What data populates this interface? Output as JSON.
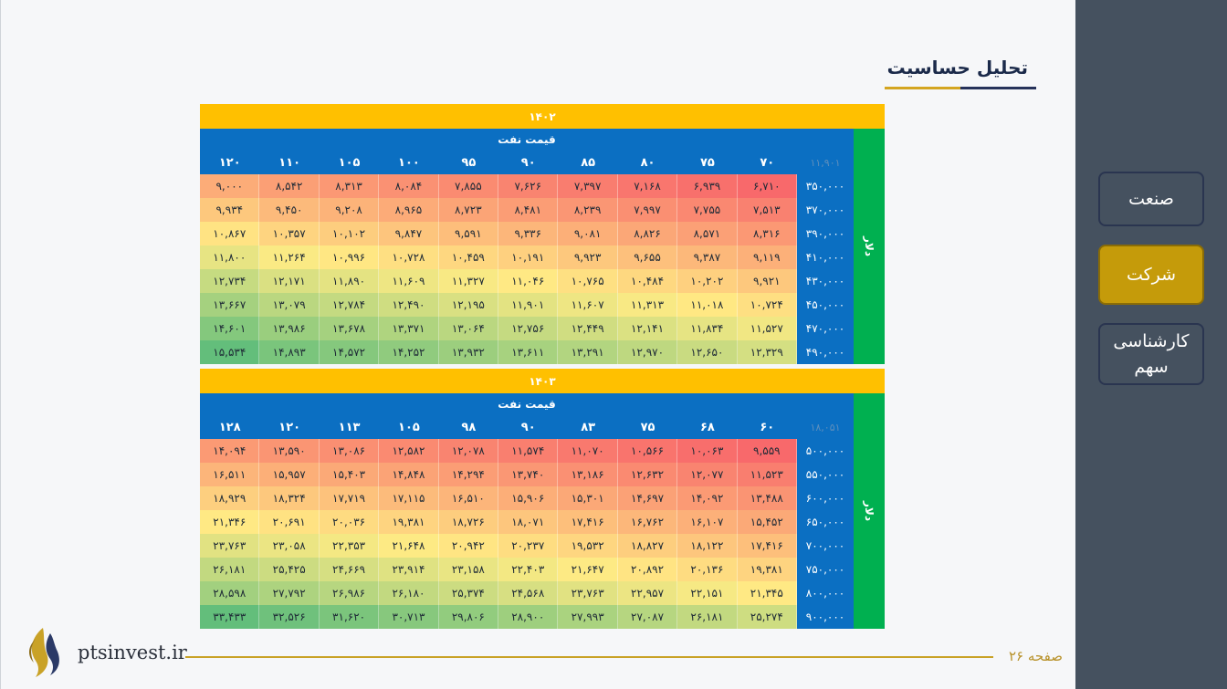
{
  "title": "تحلیل حساسیت",
  "sidebar": {
    "items": [
      {
        "label": "صنعت",
        "active": false
      },
      {
        "label": "شرکت",
        "active": true
      },
      {
        "label": "کارشناسی سهم",
        "active": false
      }
    ]
  },
  "colors": {
    "sidebar_bg": "#45515f",
    "active_item": "#c59b0a",
    "year_band": "#ffc000",
    "header_blue": "#0b6fc2",
    "side_green": "#00b050",
    "heat_low": "#f8696b",
    "heat_mid": "#ffeb84",
    "heat_high": "#63be7b"
  },
  "tables": [
    {
      "year": "۱۴۰۲",
      "oil_label": "قیمت نفت",
      "side_label": "دلار",
      "corner": "۱۱,۹۰۱",
      "columns": [
        "۷۰",
        "۷۵",
        "۸۰",
        "۸۵",
        "۹۰",
        "۹۵",
        "۱۰۰",
        "۱۰۵",
        "۱۱۰",
        "۱۲۰"
      ],
      "rows": [
        {
          "label": "۳۵۰,۰۰۰",
          "values": [
            "۶,۷۱۰",
            "۶,۹۳۹",
            "۷,۱۶۸",
            "۷,۳۹۷",
            "۷,۶۲۶",
            "۷,۸۵۵",
            "۸,۰۸۴",
            "۸,۳۱۳",
            "۸,۵۴۲",
            "۹,۰۰۰"
          ]
        },
        {
          "label": "۳۷۰,۰۰۰",
          "values": [
            "۷,۵۱۳",
            "۷,۷۵۵",
            "۷,۹۹۷",
            "۸,۲۳۹",
            "۸,۴۸۱",
            "۸,۷۲۳",
            "۸,۹۶۵",
            "۹,۲۰۸",
            "۹,۴۵۰",
            "۹,۹۳۴"
          ]
        },
        {
          "label": "۳۹۰,۰۰۰",
          "values": [
            "۸,۳۱۶",
            "۸,۵۷۱",
            "۸,۸۲۶",
            "۹,۰۸۱",
            "۹,۳۳۶",
            "۹,۵۹۱",
            "۹,۸۴۷",
            "۱۰,۱۰۲",
            "۱۰,۳۵۷",
            "۱۰,۸۶۷"
          ]
        },
        {
          "label": "۴۱۰,۰۰۰",
          "values": [
            "۹,۱۱۹",
            "۹,۳۸۷",
            "۹,۶۵۵",
            "۹,۹۲۳",
            "۱۰,۱۹۱",
            "۱۰,۴۵۹",
            "۱۰,۷۲۸",
            "۱۰,۹۹۶",
            "۱۱,۲۶۴",
            "۱۱,۸۰۰"
          ]
        },
        {
          "label": "۴۳۰,۰۰۰",
          "values": [
            "۹,۹۲۱",
            "۱۰,۲۰۲",
            "۱۰,۴۸۴",
            "۱۰,۷۶۵",
            "۱۱,۰۴۶",
            "۱۱,۳۲۷",
            "۱۱,۶۰۹",
            "۱۱,۸۹۰",
            "۱۲,۱۷۱",
            "۱۲,۷۳۴"
          ]
        },
        {
          "label": "۴۵۰,۰۰۰",
          "values": [
            "۱۰,۷۲۴",
            "۱۱,۰۱۸",
            "۱۱,۳۱۳",
            "۱۱,۶۰۷",
            "۱۱,۹۰۱",
            "۱۲,۱۹۵",
            "۱۲,۴۹۰",
            "۱۲,۷۸۴",
            "۱۳,۰۷۹",
            "۱۳,۶۶۷"
          ]
        },
        {
          "label": "۴۷۰,۰۰۰",
          "values": [
            "۱۱,۵۲۷",
            "۱۱,۸۳۴",
            "۱۲,۱۴۱",
            "۱۲,۴۴۹",
            "۱۲,۷۵۶",
            "۱۳,۰۶۴",
            "۱۳,۳۷۱",
            "۱۳,۶۷۸",
            "۱۳,۹۸۶",
            "۱۴,۶۰۱"
          ]
        },
        {
          "label": "۴۹۰,۰۰۰",
          "values": [
            "۱۲,۳۲۹",
            "۱۲,۶۵۰",
            "۱۲,۹۷۰",
            "۱۳,۲۹۱",
            "۱۳,۶۱۱",
            "۱۳,۹۳۲",
            "۱۴,۲۵۲",
            "۱۴,۵۷۲",
            "۱۴,۸۹۳",
            "۱۵,۵۳۴"
          ]
        }
      ],
      "heat": [
        [
          6710,
          6939,
          7168,
          7397,
          7626,
          7855,
          8084,
          8313,
          8542,
          9000
        ],
        [
          7513,
          7755,
          7997,
          8239,
          8481,
          8723,
          8965,
          9208,
          9450,
          9934
        ],
        [
          8316,
          8571,
          8826,
          9081,
          9336,
          9591,
          9847,
          10102,
          10357,
          10867
        ],
        [
          9119,
          9387,
          9655,
          9923,
          10191,
          10459,
          10728,
          10996,
          11264,
          11800
        ],
        [
          9921,
          10202,
          10484,
          10765,
          11046,
          11327,
          11609,
          11890,
          12171,
          12734
        ],
        [
          10724,
          11018,
          11313,
          11607,
          11901,
          12195,
          12490,
          12784,
          13079,
          13667
        ],
        [
          11527,
          11834,
          12141,
          12449,
          12756,
          13064,
          13371,
          13678,
          13986,
          14601
        ],
        [
          12329,
          12650,
          12970,
          13291,
          13611,
          13932,
          14252,
          14572,
          14893,
          15534
        ]
      ]
    },
    {
      "year": "۱۴۰۳",
      "oil_label": "قیمت نفت",
      "side_label": "دلار",
      "corner": "۱۸,۰۵۱",
      "columns": [
        "۶۰",
        "۶۸",
        "۷۵",
        "۸۳",
        "۹۰",
        "۹۸",
        "۱۰۵",
        "۱۱۳",
        "۱۲۰",
        "۱۲۸"
      ],
      "rows": [
        {
          "label": "۵۰۰,۰۰۰",
          "values": [
            "۹,۵۵۹",
            "۱۰,۰۶۳",
            "۱۰,۵۶۶",
            "۱۱,۰۷۰",
            "۱۱,۵۷۴",
            "۱۲,۰۷۸",
            "۱۲,۵۸۲",
            "۱۳,۰۸۶",
            "۱۳,۵۹۰",
            "۱۴,۰۹۴"
          ]
        },
        {
          "label": "۵۵۰,۰۰۰",
          "values": [
            "۱۱,۵۲۳",
            "۱۲,۰۷۷",
            "۱۲,۶۳۲",
            "۱۳,۱۸۶",
            "۱۳,۷۴۰",
            "۱۴,۲۹۴",
            "۱۴,۸۴۸",
            "۱۵,۴۰۳",
            "۱۵,۹۵۷",
            "۱۶,۵۱۱"
          ]
        },
        {
          "label": "۶۰۰,۰۰۰",
          "values": [
            "۱۳,۴۸۸",
            "۱۴,۰۹۲",
            "۱۴,۶۹۷",
            "۱۵,۳۰۱",
            "۱۵,۹۰۶",
            "۱۶,۵۱۰",
            "۱۷,۱۱۵",
            "۱۷,۷۱۹",
            "۱۸,۳۲۴",
            "۱۸,۹۲۹"
          ]
        },
        {
          "label": "۶۵۰,۰۰۰",
          "values": [
            "۱۵,۴۵۲",
            "۱۶,۱۰۷",
            "۱۶,۷۶۲",
            "۱۷,۴۱۶",
            "۱۸,۰۷۱",
            "۱۸,۷۲۶",
            "۱۹,۳۸۱",
            "۲۰,۰۳۶",
            "۲۰,۶۹۱",
            "۲۱,۳۴۶"
          ]
        },
        {
          "label": "۷۰۰,۰۰۰",
          "values": [
            "۱۷,۴۱۶",
            "۱۸,۱۲۲",
            "۱۸,۸۲۷",
            "۱۹,۵۳۲",
            "۲۰,۲۳۷",
            "۲۰,۹۴۲",
            "۲۱,۶۴۸",
            "۲۲,۳۵۳",
            "۲۳,۰۵۸",
            "۲۳,۷۶۳"
          ]
        },
        {
          "label": "۷۵۰,۰۰۰",
          "values": [
            "۱۹,۳۸۱",
            "۲۰,۱۳۶",
            "۲۰,۸۹۲",
            "۲۱,۶۴۷",
            "۲۲,۴۰۳",
            "۲۳,۱۵۸",
            "۲۳,۹۱۴",
            "۲۴,۶۶۹",
            "۲۵,۴۲۵",
            "۲۶,۱۸۱"
          ]
        },
        {
          "label": "۸۰۰,۰۰۰",
          "values": [
            "۲۱,۳۴۵",
            "۲۲,۱۵۱",
            "۲۲,۹۵۷",
            "۲۳,۷۶۳",
            "۲۴,۵۶۸",
            "۲۵,۳۷۴",
            "۲۶,۱۸۰",
            "۲۶,۹۸۶",
            "۲۷,۷۹۲",
            "۲۸,۵۹۸"
          ]
        },
        {
          "label": "۹۰۰,۰۰۰",
          "values": [
            "۲۵,۲۷۴",
            "۲۶,۱۸۱",
            "۲۷,۰۸۷",
            "۲۷,۹۹۳",
            "۲۸,۹۰۰",
            "۲۹,۸۰۶",
            "۳۰,۷۱۳",
            "۳۱,۶۲۰",
            "۳۲,۵۲۶",
            "۳۳,۴۳۳"
          ]
        }
      ],
      "heat": [
        [
          9559,
          10063,
          10566,
          11070,
          11574,
          12078,
          12582,
          13086,
          13590,
          14094
        ],
        [
          11523,
          12077,
          12632,
          13186,
          13740,
          14294,
          14848,
          15403,
          15957,
          16511
        ],
        [
          13488,
          14092,
          14697,
          15301,
          15906,
          16510,
          17115,
          17719,
          18324,
          18929
        ],
        [
          15452,
          16107,
          16762,
          17416,
          18071,
          18726,
          19381,
          20036,
          20691,
          21346
        ],
        [
          17416,
          18122,
          18827,
          19532,
          20237,
          20942,
          21648,
          22353,
          23058,
          23763
        ],
        [
          19381,
          20136,
          20892,
          21647,
          22403,
          23158,
          23914,
          24669,
          25425,
          26181
        ],
        [
          21345,
          22151,
          22957,
          23763,
          24568,
          25374,
          26180,
          26986,
          27792,
          28598
        ],
        [
          25274,
          26181,
          27087,
          27993,
          28900,
          29806,
          30713,
          31620,
          32526,
          33433
        ]
      ]
    }
  ],
  "footer": {
    "page": "صفحه ۲۶",
    "site": "ptsinvest.ir"
  }
}
